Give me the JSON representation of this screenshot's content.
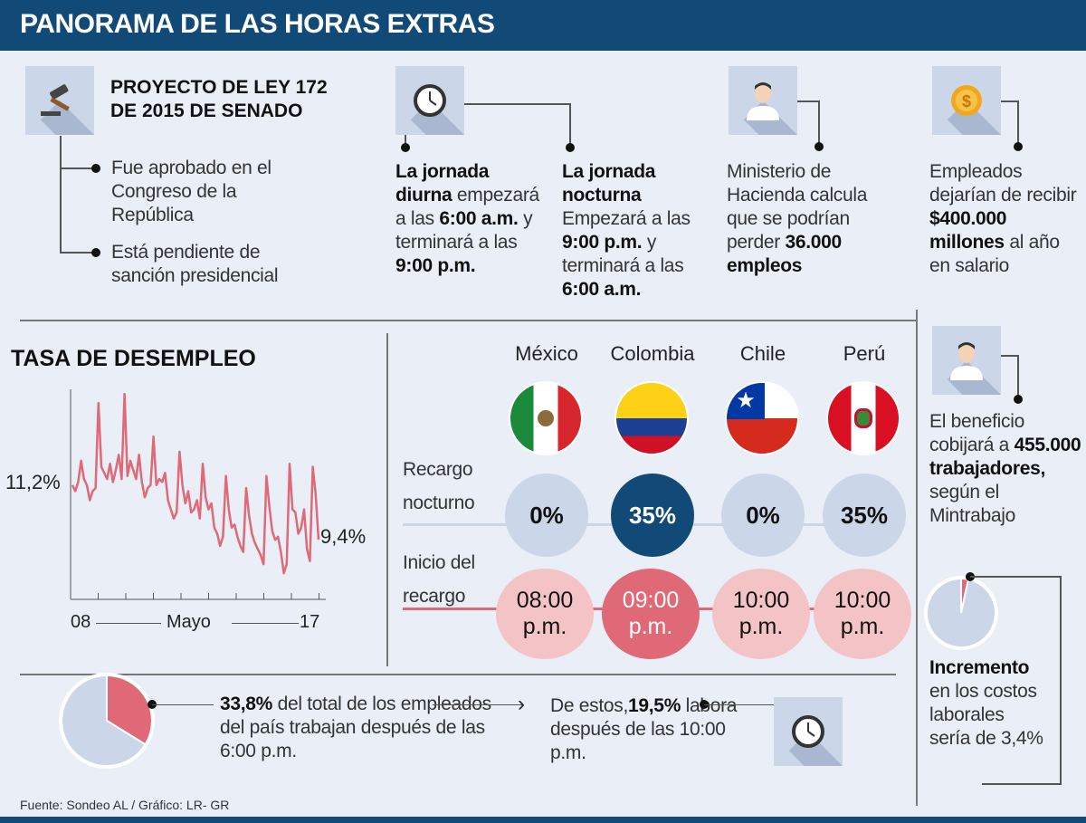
{
  "header": {
    "title": "PANORAMA DE LAS HORAS EXTRAS"
  },
  "bill": {
    "title_1": "PROYECTO DE LEY 172",
    "title_2": "DE 2015 DE SENADO",
    "points": [
      "Fue aprobado en el Congreso de la República",
      "Está pendiente de sanción presidencial"
    ]
  },
  "facts": {
    "diurna": {
      "bold": "La jornada diurna",
      "t1": "empezará a las",
      "b1": "6:00 a.m.",
      "t2": "y terminará a las",
      "b2": "9:00 p.m."
    },
    "nocturna": {
      "bold": "La jornada nocturna",
      "t1": "Empezará a las",
      "b1": "9:00 p.m.",
      "t2": "y terminará a las",
      "b2": "6:00 a.m."
    },
    "hacienda": {
      "t1": "Ministerio de Hacienda calcula que se podrían perder",
      "b1": "36.000 empleos"
    },
    "salario": {
      "t1": "Empleados dejarían de recibir",
      "b1": "$400.000 millones",
      "t2": "al año en salario"
    },
    "beneficio": {
      "t1": "El beneficio cobijará a",
      "b1": "455.000 trabajadores,",
      "t2": "según el Mintrabajo"
    },
    "incremento": {
      "b1": "Incremento",
      "t1": "en los costos laborales sería de 3,4%"
    }
  },
  "countries": {
    "row1_label": "Recargo nocturno",
    "row2_label": "Inicio del recargo",
    "items": [
      {
        "name": "México",
        "recargo": "0%",
        "inicio_1": "08:00",
        "inicio_2": "p.m."
      },
      {
        "name": "Colombia",
        "recargo": "35%",
        "inicio_1": "09:00",
        "inicio_2": "p.m."
      },
      {
        "name": "Chile",
        "recargo": "0%",
        "inicio_1": "10:00",
        "inicio_2": "p.m."
      },
      {
        "name": "Perú",
        "recargo": "35%",
        "inicio_1": "10:00",
        "inicio_2": "p.m."
      }
    ]
  },
  "bottom": {
    "b1": "33,8%",
    "t1": "del total de los empleados del país trabajan después de las 6:00 p.m.",
    "t2": "De estos,",
    "b2": "19,5%",
    "t3": "labora después de las 10:00 p.m."
  },
  "footer": {
    "source": "Fuente: Sondeo AL / Gráfico: LR- GR"
  },
  "colors": {
    "brand": "#124a77",
    "red": "#e06977",
    "pink": "#f4c3c6",
    "light": "#cbd6e8"
  },
  "chart_data": [
    {
      "type": "line",
      "title": "TASA DE DESEMPLEO",
      "ylabel": "",
      "xlabel": "Mayo",
      "x_ticks": [
        "08",
        "17"
      ],
      "start_label": "11,2%",
      "end_label": "9,4%",
      "ylim": [
        7.5,
        14.5
      ],
      "values": [
        11.2,
        11.0,
        11.3,
        12.0,
        11.4,
        11.2,
        10.7,
        11.0,
        11.1,
        13.9,
        11.8,
        11.6,
        11.4,
        11.9,
        11.3,
        11.7,
        12.2,
        11.4,
        14.2,
        11.5,
        12.0,
        11.7,
        11.4,
        12.2,
        11.3,
        10.8,
        11.1,
        11.2,
        12.8,
        11.2,
        11.4,
        11.3,
        11.6,
        10.7,
        10.4,
        10.1,
        10.3,
        12.3,
        11.2,
        10.6,
        11.0,
        10.3,
        10.4,
        10.7,
        10.1,
        11.9,
        10.8,
        10.4,
        10.6,
        9.8,
        9.6,
        9.2,
        9.5,
        11.5,
        10.4,
        9.8,
        9.9,
        9.5,
        9.2,
        9.0,
        11.1,
        10.2,
        9.6,
        9.3,
        9.1,
        8.9,
        8.6,
        11.5,
        10.5,
        9.7,
        9.4,
        9.5,
        9.0,
        8.3,
        8.6,
        11.9,
        10.4,
        10.3,
        9.6,
        9.8,
        10.4,
        9.1,
        8.7,
        11.8,
        10.9,
        9.4
      ]
    },
    {
      "type": "pie",
      "name": "employees-after-6pm",
      "values": [
        33.8,
        66.2
      ]
    },
    {
      "type": "pie",
      "name": "labor-cost-increase",
      "values": [
        3.4,
        96.6
      ]
    }
  ]
}
